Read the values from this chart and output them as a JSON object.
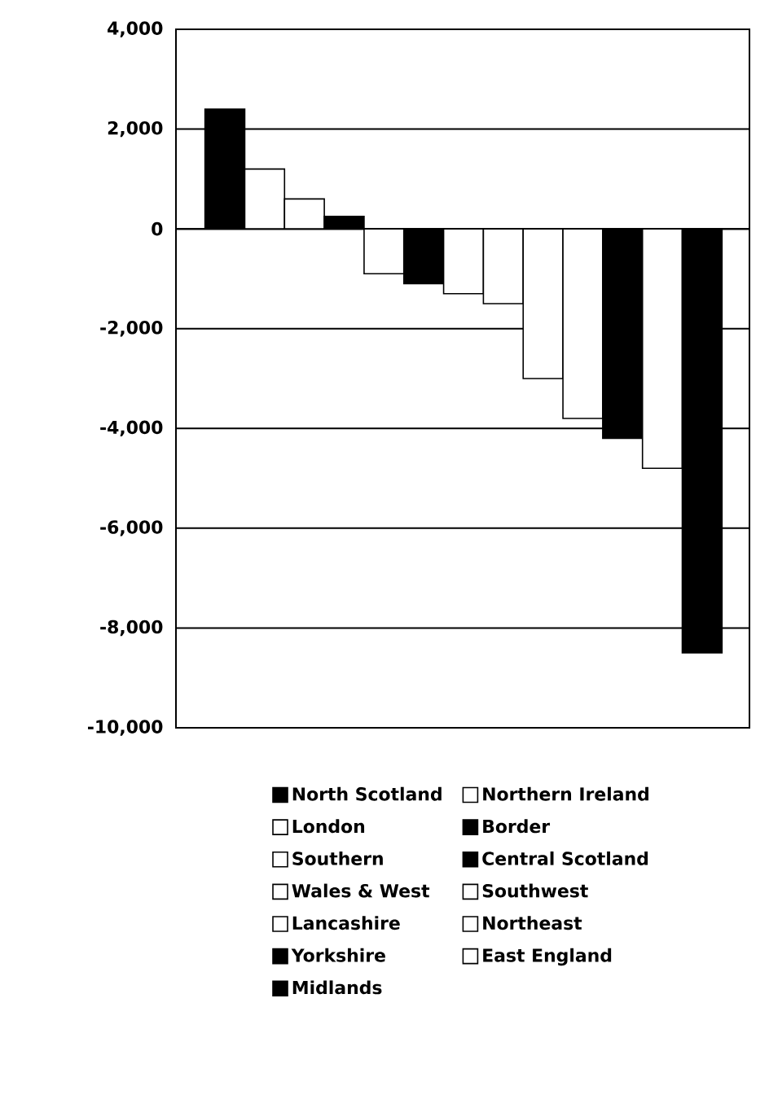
{
  "chart_data": {
    "type": "bar",
    "categories": [
      null
    ],
    "series": [
      {
        "name": "North Scotland",
        "color": "#000000",
        "values": [
          2400
        ]
      },
      {
        "name": "Northern Ireland",
        "color": "#ffffff",
        "values": [
          1200
        ]
      },
      {
        "name": "London",
        "color": "#ffffff",
        "values": [
          600
        ]
      },
      {
        "name": "Border",
        "color": "#000000",
        "values": [
          250
        ]
      },
      {
        "name": "Southern",
        "color": "#ffffff",
        "values": [
          -900
        ]
      },
      {
        "name": "Central Scotland",
        "color": "#000000",
        "values": [
          -1100
        ]
      },
      {
        "name": "Wales & West",
        "color": "#ffffff",
        "values": [
          -1300
        ]
      },
      {
        "name": "Southwest",
        "color": "#ffffff",
        "values": [
          -1500
        ]
      },
      {
        "name": "Lancashire",
        "color": "#ffffff",
        "values": [
          -3000
        ]
      },
      {
        "name": "Northeast",
        "color": "#ffffff",
        "values": [
          -3800
        ]
      },
      {
        "name": "Yorkshire",
        "color": "#000000",
        "values": [
          -4200
        ]
      },
      {
        "name": "East England",
        "color": "#ffffff",
        "values": [
          -4800
        ]
      },
      {
        "name": "Midlands",
        "color": "#000000",
        "values": [
          -8500
        ]
      }
    ],
    "ylim": [
      -10000,
      4000
    ],
    "yticks": [
      {
        "value": 4000,
        "label": "4,000"
      },
      {
        "value": 2000,
        "label": "2,000"
      },
      {
        "value": 0,
        "label": "0"
      },
      {
        "value": -2000,
        "label": "-2,000"
      },
      {
        "value": -4000,
        "label": "-4,000"
      },
      {
        "value": -6000,
        "label": "-6,000"
      },
      {
        "value": -8000,
        "label": "-8,000"
      },
      {
        "value": -10000,
        "label": "-10,000"
      }
    ],
    "grid": "y",
    "legend": "bottom"
  }
}
